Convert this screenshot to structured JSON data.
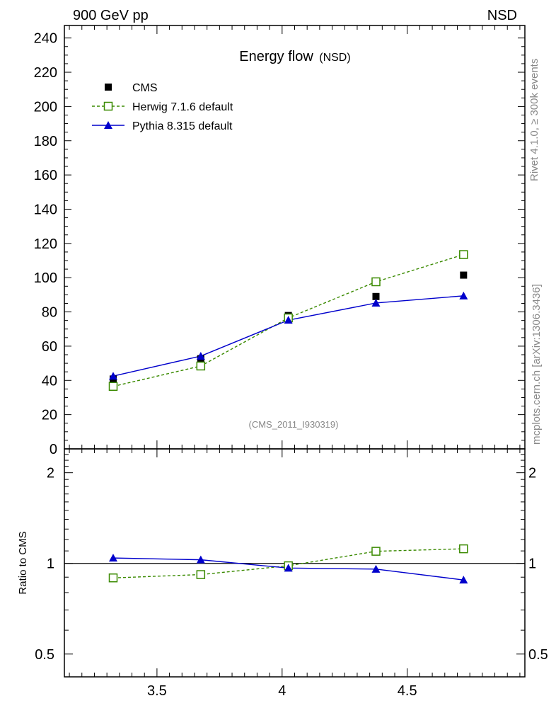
{
  "header": {
    "left_label": "900 GeV pp",
    "right_label": "NSD"
  },
  "side_labels": {
    "rivet": "Rivet 4.1.0, ≥ 300k events",
    "mcplots": "mcplots.cern.ch [arXiv:1306.3436]"
  },
  "chart_data": {
    "type": "scatter",
    "title": "Energy flow",
    "title_suffix": "(NSD)",
    "analysis_tag": "(CMS_2011_I930319)",
    "xlabel": "",
    "ylabel": "",
    "xlim": [
      3.13,
      4.97
    ],
    "ylim": [
      0,
      244
    ],
    "x": [
      3.325,
      3.675,
      4.025,
      4.375,
      4.725
    ],
    "main_y_ticks": [
      0,
      20,
      40,
      60,
      80,
      100,
      120,
      140,
      160,
      180,
      200,
      220,
      240
    ],
    "x_ticks": [
      3.5,
      4,
      4.5
    ],
    "x_tick_labels": [
      "3.5",
      "4",
      "4.5"
    ],
    "series": [
      {
        "name": "CMS",
        "marker": "filled-square",
        "color": "#000000",
        "line": "none",
        "values": [
          40.8,
          52.7,
          77.9,
          89.0,
          101.5
        ]
      },
      {
        "name": "Herwig 7.1.6 default",
        "marker": "open-square",
        "color": "#3a8a00",
        "line": "dashed",
        "values": [
          36.5,
          48.4,
          76.5,
          97.6,
          113.5
        ]
      },
      {
        "name": "Pythia 8.315 default",
        "marker": "filled-triangle",
        "color": "#0000cc",
        "line": "solid",
        "values": [
          42.5,
          54.2,
          75.2,
          85.2,
          89.4
        ]
      }
    ],
    "ratio": {
      "ylabel": "Ratio to CMS",
      "ylim": [
        0.42,
        2.4
      ],
      "y_tick_labels": [
        "0.5",
        "1",
        "2"
      ],
      "y_ticks": [
        0.5,
        1,
        2
      ],
      "series": [
        {
          "name": "Herwig 7.1.6 default",
          "values": [
            0.895,
            0.918,
            0.982,
            1.097,
            1.118
          ]
        },
        {
          "name": "Pythia 8.315 default",
          "values": [
            1.042,
            1.028,
            0.965,
            0.957,
            0.881
          ]
        }
      ]
    }
  }
}
